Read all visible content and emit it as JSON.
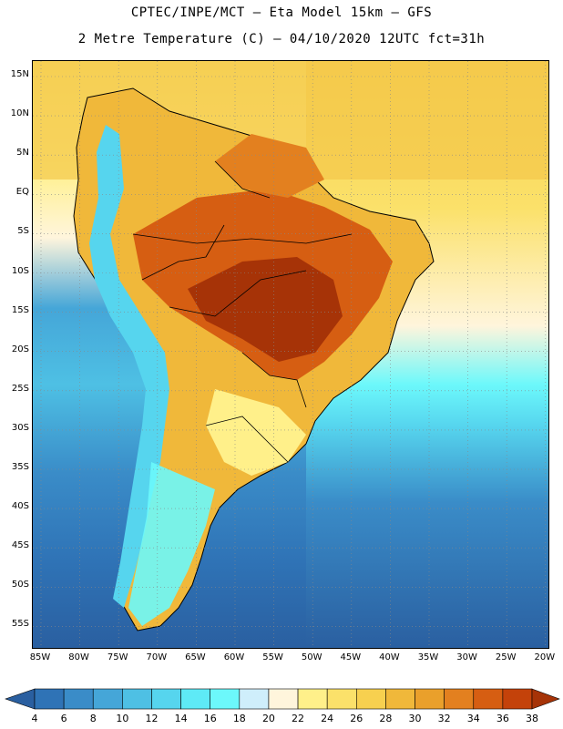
{
  "title_line1": "CPTEC/INPE/MCT –  Eta Model 15km – GFS",
  "title_line2": "2 Metre Temperature (C) – 04/10/2020 12UTC fct=31h",
  "map": {
    "lat_labels": [
      "15N",
      "10N",
      "5N",
      "EQ",
      "5S",
      "10S",
      "15S",
      "20S",
      "25S",
      "30S",
      "35S",
      "40S",
      "45S",
      "50S",
      "55S"
    ],
    "lon_labels": [
      "85W",
      "80W",
      "75W",
      "70W",
      "65W",
      "60W",
      "55W",
      "50W",
      "45W",
      "40W",
      "35W",
      "30W",
      "25W",
      "20W"
    ]
  },
  "legend": {
    "levels": [
      "4",
      "6",
      "8",
      "10",
      "12",
      "14",
      "16",
      "18",
      "20",
      "22",
      "24",
      "26",
      "28",
      "30",
      "32",
      "34",
      "36",
      "38"
    ],
    "colors": [
      "#2a5fa0",
      "#2f73b6",
      "#3a8cc8",
      "#45a6d8",
      "#4ec0e4",
      "#56d5ee",
      "#5eeaf6",
      "#6cf8fb",
      "#cfeefb",
      "#fff5dc",
      "#fff08a",
      "#fbe16a",
      "#f7d04f",
      "#f0b83a",
      "#eaa02b",
      "#e3801f",
      "#d65e12",
      "#c4420a",
      "#a63307"
    ]
  }
}
